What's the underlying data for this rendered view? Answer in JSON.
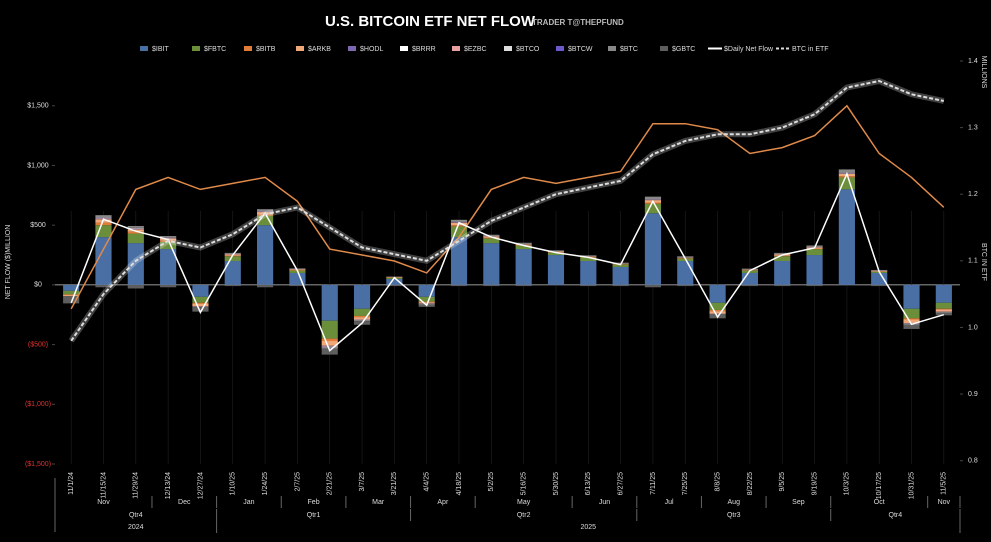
{
  "chart_data": {
    "type": "bar",
    "title": "U.S. BITCOIN ETF NET FLOW",
    "subtitle": "TRADER T@THEPFUND",
    "y_label": "NET FLOW ($)MILLION",
    "y2_label": "BTC IN ETF",
    "y2_unit": "MILLIONS",
    "x": [
      "11/1/24",
      "11/15/24",
      "11/29/24",
      "12/13/24",
      "12/27/24",
      "1/10/25",
      "1/24/25",
      "2/7/25",
      "2/21/25",
      "3/7/25",
      "3/21/25",
      "4/4/25",
      "4/18/25",
      "5/2/25",
      "5/16/25",
      "5/30/25",
      "6/13/25",
      "6/27/25",
      "7/11/25",
      "7/25/25",
      "8/8/25",
      "8/22/25",
      "9/5/25",
      "9/19/25",
      "10/3/25",
      "10/17/25",
      "10/31/25",
      "11/5/25"
    ],
    "months": [
      "Nov",
      "Dec",
      "Jan",
      "Feb",
      "Mar",
      "Apr",
      "May",
      "Jun",
      "Jul",
      "Aug",
      "Sep",
      "Oct",
      "Nov"
    ],
    "quarters": [
      "Qtr4",
      "Qtr1",
      "Qtr2",
      "Qtr3",
      "Qtr4"
    ],
    "years": [
      "2024",
      "2025"
    ],
    "ylim": [
      -1500,
      1875
    ],
    "yticks": [
      {
        "value": -1500,
        "label": "($1,500)"
      },
      {
        "value": -1000,
        "label": "($1,000)"
      },
      {
        "value": -500,
        "label": "($500)"
      },
      {
        "value": 0,
        "label": "$0"
      },
      {
        "value": 500,
        "label": "$500"
      },
      {
        "value": 1000,
        "label": "$1,000"
      },
      {
        "value": 1500,
        "label": "$1,500"
      }
    ],
    "y2lim": [
      0.795,
      1.4
    ],
    "y2ticks": [
      0.8,
      0.9,
      {
        "value": 1,
        "label": "1.0"
      },
      1.1,
      1.2,
      1.3,
      1.4
    ],
    "series": [
      {
        "name": "$IBIT",
        "type": "bar",
        "color": "#4a6fa5",
        "values": [
          -50,
          400,
          350,
          300,
          -100,
          200,
          500,
          100,
          -300,
          -200,
          50,
          -100,
          400,
          350,
          300,
          250,
          200,
          150,
          600,
          200,
          -150,
          100,
          200,
          250,
          800,
          100,
          -200,
          -150
        ]
      },
      {
        "name": "$FBTC",
        "type": "bar",
        "color": "#6b8e3a",
        "values": [
          -30,
          100,
          80,
          60,
          -50,
          40,
          80,
          20,
          -150,
          -60,
          10,
          -40,
          90,
          40,
          30,
          20,
          30,
          20,
          80,
          20,
          -60,
          20,
          40,
          50,
          100,
          10,
          -80,
          -50
        ]
      },
      {
        "name": "$BITB",
        "type": "bar",
        "color": "#e07b39",
        "values": [
          -5,
          20,
          15,
          10,
          -10,
          5,
          10,
          5,
          -20,
          -10,
          2,
          -5,
          10,
          5,
          5,
          5,
          5,
          3,
          10,
          3,
          -10,
          3,
          5,
          5,
          10,
          2,
          -10,
          -5
        ]
      },
      {
        "name": "$ARKB",
        "type": "bar",
        "color": "#f0a878",
        "values": [
          -10,
          30,
          20,
          20,
          -20,
          10,
          20,
          5,
          -40,
          -20,
          5,
          -10,
          20,
          10,
          5,
          5,
          5,
          5,
          20,
          5,
          -20,
          5,
          10,
          10,
          20,
          5,
          -30,
          -20
        ]
      },
      {
        "name": "$HODL",
        "type": "bar",
        "color": "#7b68b0",
        "values": [
          0,
          5,
          5,
          3,
          -2,
          2,
          3,
          1,
          -5,
          -3,
          0,
          -2,
          4,
          2,
          2,
          1,
          1,
          1,
          3,
          1,
          -2,
          1,
          2,
          2,
          4,
          1,
          -3,
          -2
        ]
      },
      {
        "name": "$BRRR",
        "type": "bar",
        "color": "#ffffff",
        "values": [
          0,
          2,
          2,
          1,
          0,
          1,
          1,
          0,
          -2,
          -1,
          0,
          0,
          1,
          1,
          1,
          0,
          0,
          0,
          1,
          0,
          -1,
          0,
          1,
          1,
          2,
          0,
          -1,
          -1
        ]
      },
      {
        "name": "$EZBC",
        "type": "bar",
        "color": "#e8a0a0",
        "values": [
          0,
          3,
          3,
          2,
          -1,
          1,
          2,
          1,
          -3,
          -2,
          0,
          -1,
          2,
          1,
          1,
          1,
          1,
          1,
          2,
          1,
          -1,
          1,
          1,
          1,
          3,
          1,
          -2,
          -1
        ]
      },
      {
        "name": "$BTCO",
        "type": "bar",
        "color": "#dddddd",
        "values": [
          0,
          3,
          2,
          2,
          -1,
          1,
          2,
          1,
          -3,
          -2,
          0,
          -1,
          2,
          1,
          1,
          1,
          1,
          1,
          2,
          1,
          -1,
          1,
          1,
          1,
          2,
          1,
          -2,
          -1
        ]
      },
      {
        "name": "$BTCW",
        "type": "bar",
        "color": "#6a5acd",
        "values": [
          0,
          1,
          1,
          1,
          0,
          0,
          1,
          0,
          -1,
          -1,
          0,
          0,
          1,
          0,
          0,
          0,
          0,
          0,
          1,
          0,
          0,
          0,
          0,
          0,
          1,
          0,
          -1,
          0
        ]
      },
      {
        "name": "$BTC",
        "type": "bar",
        "color": "#888888",
        "values": [
          5,
          20,
          15,
          10,
          5,
          8,
          15,
          5,
          -10,
          -5,
          3,
          -5,
          15,
          10,
          8,
          6,
          5,
          5,
          20,
          8,
          -5,
          5,
          8,
          10,
          25,
          5,
          -10,
          -5
        ]
      },
      {
        "name": "$GBTC",
        "type": "bar",
        "color": "#5e5e5e",
        "values": [
          -60,
          -20,
          -30,
          -20,
          -40,
          -10,
          -20,
          -10,
          -50,
          -30,
          -10,
          -20,
          -10,
          -10,
          -10,
          -5,
          -10,
          -10,
          -20,
          -10,
          -30,
          -10,
          -10,
          -10,
          -5,
          -10,
          -30,
          -20
        ]
      },
      {
        "type": "line",
        "color": "#e08a4a",
        "values": [
          -200,
          300,
          800,
          900,
          800,
          850,
          900,
          700,
          300,
          250,
          200,
          100,
          400,
          800,
          900,
          850,
          900,
          950,
          1350,
          1350,
          1300,
          1100,
          1150,
          1250,
          1500,
          1100,
          900,
          650
        ]
      },
      {
        "name": "$Daily Net Flow",
        "type": "line",
        "color": "#ffffff",
        "values": [
          -150,
          550,
          450,
          380,
          -230,
          250,
          600,
          120,
          -550,
          -320,
          60,
          -170,
          520,
          400,
          330,
          270,
          230,
          170,
          700,
          220,
          -270,
          120,
          250,
          310,
          930,
          110,
          -330,
          -250
        ]
      },
      {
        "name": "BTC in ETF",
        "type": "line",
        "axis": "y2",
        "dash": true,
        "color": "#dddddd",
        "values": [
          0.98,
          1.05,
          1.1,
          1.13,
          1.12,
          1.14,
          1.17,
          1.18,
          1.15,
          1.12,
          1.11,
          1.1,
          1.13,
          1.16,
          1.18,
          1.2,
          1.21,
          1.22,
          1.26,
          1.28,
          1.29,
          1.29,
          1.3,
          1.32,
          1.36,
          1.37,
          1.35,
          1.34
        ]
      }
    ]
  }
}
